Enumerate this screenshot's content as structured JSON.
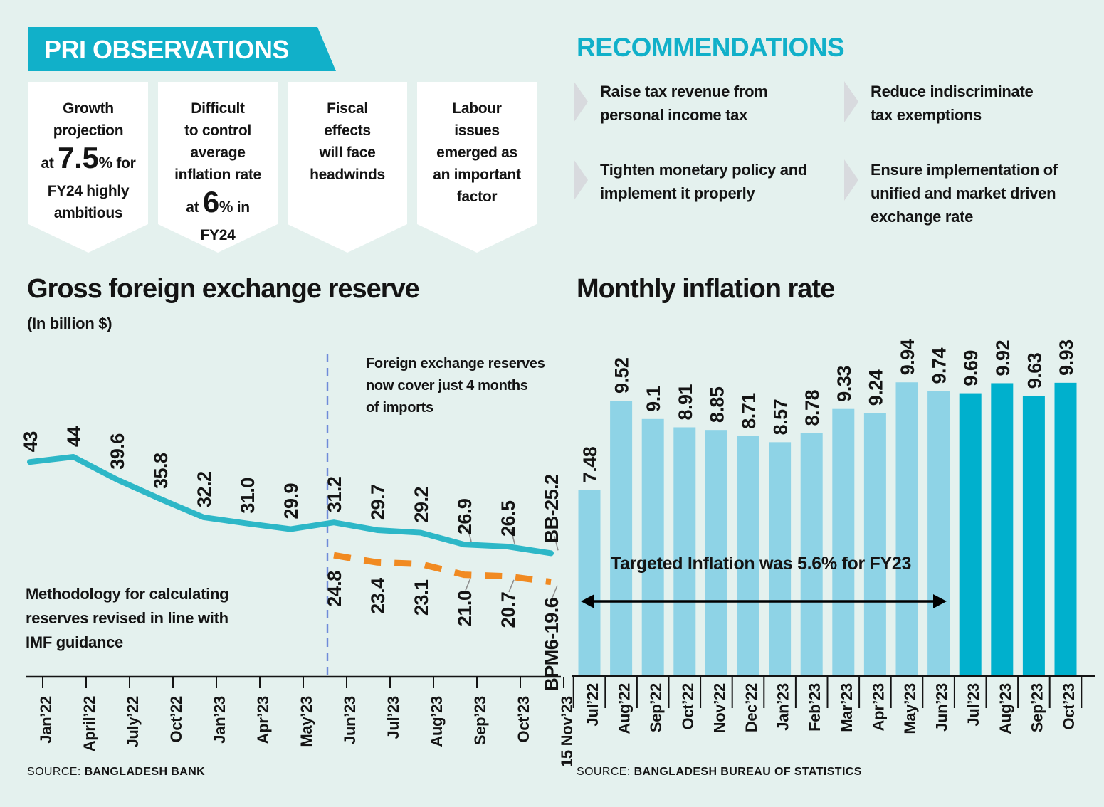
{
  "page": {
    "background_color": "#e4f1ee",
    "accent_teal": "#11b0c9",
    "text_color": "#141414",
    "divider_blue": "#6f8bd9",
    "chevron_gray": "#d8dade"
  },
  "observations": {
    "header": "PRI OBSERVATIONS",
    "boxes": [
      {
        "lines": [
          {
            "t": "Growth"
          },
          {
            "t": "projection"
          },
          {
            "parts": [
              {
                "t": "at "
              },
              {
                "t": "7.5",
                "big": true
              },
              {
                "t": "%",
                "sup": true
              },
              {
                "t": " for"
              }
            ]
          },
          {
            "t": "FY24 highly"
          },
          {
            "t": "ambitious"
          }
        ]
      },
      {
        "lines": [
          {
            "t": "Difficult"
          },
          {
            "t": "to control"
          },
          {
            "t": "average"
          },
          {
            "t": "inflation rate"
          },
          {
            "parts": [
              {
                "t": "at "
              },
              {
                "t": "6",
                "big": true
              },
              {
                "t": "%",
                "sup": true
              },
              {
                "t": " in"
              }
            ]
          },
          {
            "t": "FY24"
          }
        ]
      },
      {
        "lines": [
          {
            "t": "Fiscal"
          },
          {
            "t": "effects"
          },
          {
            "t": "will face"
          },
          {
            "t": "headwinds"
          }
        ]
      },
      {
        "lines": [
          {
            "t": "Labour"
          },
          {
            "t": "issues"
          },
          {
            "t": "emerged as"
          },
          {
            "t": "an important"
          },
          {
            "t": "factor"
          }
        ]
      }
    ]
  },
  "recommendations": {
    "header": "RECOMMENDATIONS",
    "items": [
      "Raise tax revenue from\npersonal income tax",
      "Reduce indiscriminate\ntax exemptions",
      "Tighten monetary policy and\nimplement it properly",
      "Ensure implementation of\nunified and market driven\nexchange rate"
    ]
  },
  "chart_data": [
    {
      "type": "line",
      "title": "Gross foreign exchange reserve",
      "subtitle": "(In billion $)",
      "categories": [
        "Jan’22",
        "April’22",
        "July’22",
        "Oct’22",
        "Jan’23",
        "Apr’23",
        "May’23",
        "Jun’23",
        "Jul’23",
        "Aug’23",
        "Sep’23",
        "Oct’23",
        "15 Nov’23"
      ],
      "series": [
        {
          "name": "BB",
          "color": "#2db7c7",
          "style": "solid",
          "start_index": 0,
          "values": [
            43,
            44,
            39.6,
            35.8,
            32.2,
            31.0,
            29.9,
            31.2,
            29.7,
            29.2,
            26.9,
            26.5,
            25.2
          ],
          "point_labels": [
            "43",
            "44",
            "39.6",
            "35.8",
            "32.2",
            "31.0",
            "29.9",
            "31.2",
            "29.7",
            "29.2",
            "26.9",
            "26.5",
            "BB-25.2"
          ]
        },
        {
          "name": "BPM6",
          "color": "#f18a21",
          "style": "dashed",
          "start_index": 7,
          "values": [
            24.8,
            23.4,
            23.1,
            21.0,
            20.7,
            19.6
          ],
          "point_labels": [
            "24.8",
            "23.4",
            "23.1",
            "21.0",
            "20.7",
            "BPM6-19.6"
          ]
        }
      ],
      "divider_category": "Jun’23",
      "note_cover": "Foreign exchange reserves\nnow cover just 4 months\nof imports",
      "note_method": "Methodology for calculating\nreserves revised in line with\nIMF guidance",
      "ylim": [
        19.6,
        44
      ],
      "grid": false,
      "source_prefix": "SOURCE:",
      "source": "BANGLADESH BANK"
    },
    {
      "type": "bar",
      "title": "Monthly inflation rate",
      "categories": [
        "Jul’22",
        "Aug’22",
        "Sep’22",
        "Oct’22",
        "Nov’22",
        "Dec’22",
        "Jan’23",
        "Feb’23",
        "Mar’23",
        "Apr’23",
        "May’23",
        "Jun’23",
        "Jul’23",
        "Aug’23",
        "Sep’23",
        "Oct’23"
      ],
      "values": [
        7.48,
        9.52,
        9.1,
        8.91,
        8.85,
        8.71,
        8.57,
        8.78,
        9.33,
        9.24,
        9.94,
        9.74,
        9.69,
        9.92,
        9.63,
        9.93
      ],
      "bar_labels": [
        "7.48",
        "9.52",
        "9.1",
        "8.91",
        "8.85",
        "8.71",
        "8.57",
        "8.78",
        "9.33",
        "9.24",
        "9.94",
        "9.74",
        "9.69",
        "9.92",
        "9.63",
        "9.93"
      ],
      "fy23_color": "#8ed3e6",
      "fy24_color": "#00b0cd",
      "fy23_bar_count": 12,
      "annotation": "Targeted Inflation was 5.6% for FY23",
      "grid": false,
      "source_prefix": "SOURCE:",
      "source": "BANGLADESH BUREAU OF STATISTICS"
    }
  ]
}
